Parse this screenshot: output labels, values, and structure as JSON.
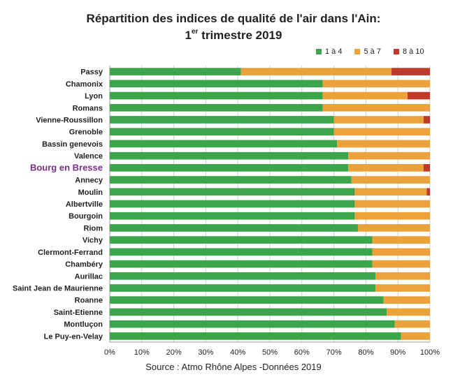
{
  "chart_data": {
    "type": "bar",
    "orientation": "horizontal",
    "stacked": "percent",
    "title_line1": "Répartition des indices de qualité de l'air dans l'Ain:",
    "title_line2_prefix": "1",
    "title_line2_sup": "er",
    "title_line2_suffix": " trimestre 2019",
    "source": "Source : Atmo Rhône Alpes -Données 2019",
    "highlight_category": "Bourg en Bresse",
    "categories": [
      "Passy",
      "Chamonix",
      "Lyon",
      "Romans",
      "Vienne-Roussillon",
      "Grenoble",
      "Bassin genevois",
      "Valence",
      "Bourg en Bresse",
      "Annecy",
      "Moulin",
      "Albertville",
      "Bourgoin",
      "Riom",
      "Vichy",
      "Clermont-Ferrand",
      "Chambéry",
      "Aurillac",
      "Saint Jean de Maurienne",
      "Roanne",
      "Saint-Etienne",
      "Montluçon",
      "Le Puy-en-Velay"
    ],
    "series": [
      {
        "name": "1 à 4",
        "color": "#3aa54a",
        "values": [
          41,
          66.5,
          66.5,
          66.5,
          70,
          70,
          71,
          74.5,
          74.5,
          75.5,
          76.5,
          76.5,
          76.5,
          77.5,
          82,
          82,
          82,
          83,
          83,
          85.5,
          86.5,
          89,
          91
        ]
      },
      {
        "name": "5 à 7",
        "color": "#eba23a",
        "values": [
          47,
          33.5,
          26.5,
          33.5,
          28,
          30,
          29,
          25.5,
          23.5,
          24.5,
          22.5,
          23.5,
          23.5,
          22.5,
          18,
          18,
          18,
          17,
          17,
          14.5,
          13.5,
          11,
          9
        ]
      },
      {
        "name": "8 à 10",
        "color": "#c0392b",
        "values": [
          12,
          0,
          7,
          0,
          2,
          0,
          0,
          0,
          2,
          0,
          1,
          0,
          0,
          0,
          0,
          0,
          0,
          0,
          0,
          0,
          0,
          0,
          0
        ]
      }
    ],
    "xlim": [
      0,
      100
    ],
    "xticks": [
      "0%",
      "10%",
      "20%",
      "30%",
      "40%",
      "50%",
      "60%",
      "70%",
      "80%",
      "90%",
      "100%"
    ],
    "legend_position": "top-right",
    "grid": true
  }
}
